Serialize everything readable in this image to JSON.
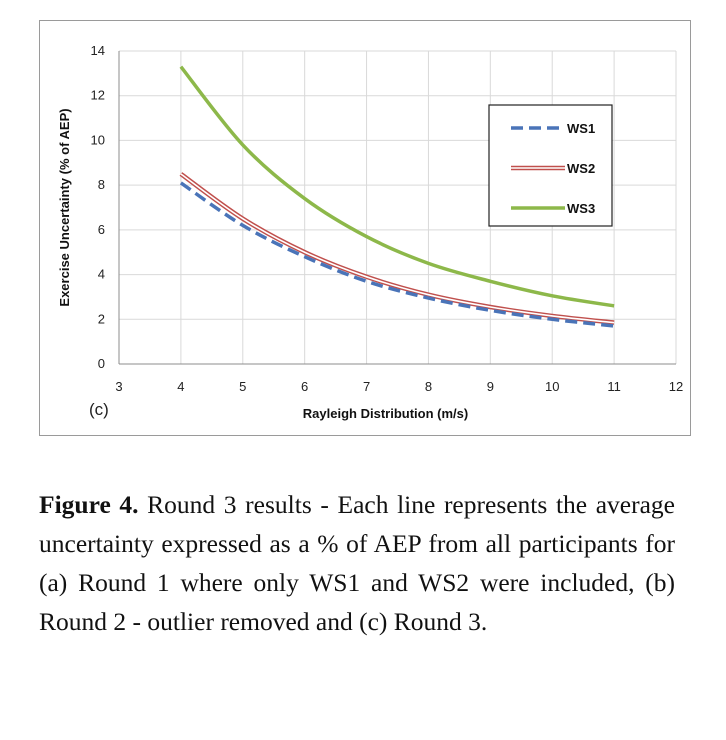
{
  "chart_data": {
    "type": "line",
    "title": "",
    "panel_label": "(c)",
    "xlabel": "Rayleigh Distribution  (m/s)",
    "ylabel": "Exercise Uncertainty (% of AEP)",
    "xlim": [
      3,
      12
    ],
    "ylim": [
      0,
      14
    ],
    "xticks": [
      3,
      4,
      5,
      6,
      7,
      8,
      9,
      10,
      11,
      12
    ],
    "yticks": [
      0,
      2,
      4,
      6,
      8,
      10,
      12,
      14
    ],
    "grid": true,
    "legend_position": "top-right",
    "x": [
      4,
      5,
      6,
      7,
      8,
      9,
      10,
      11
    ],
    "series": [
      {
        "name": "WS1",
        "style": "dashed",
        "color": "#4a74b8",
        "values": [
          8.1,
          6.2,
          4.8,
          3.7,
          2.95,
          2.4,
          2.0,
          1.7
        ]
      },
      {
        "name": "WS2",
        "style": "double",
        "color": "#c0504d",
        "values": [
          8.5,
          6.5,
          5.0,
          3.9,
          3.1,
          2.55,
          2.15,
          1.85
        ]
      },
      {
        "name": "WS3",
        "style": "solid",
        "color": "#8db84a",
        "values": [
          13.3,
          9.8,
          7.4,
          5.7,
          4.5,
          3.7,
          3.05,
          2.6
        ]
      }
    ]
  },
  "caption": {
    "label": "Figure 4.",
    "text": " Round 3 results - Each line represents the average uncertainty expressed as a % of AEP from all participants for (a) Round 1 where only WS1 and WS2 were included, (b) Round 2 - outlier removed and (c) Round 3."
  }
}
